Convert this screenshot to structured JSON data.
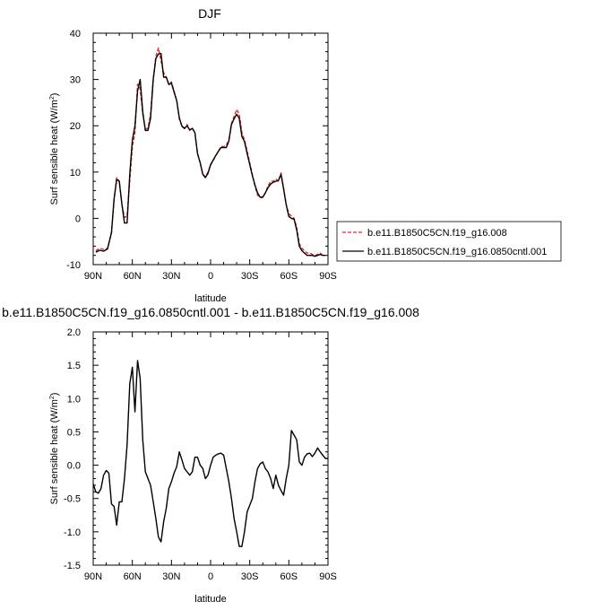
{
  "chart_data": [
    {
      "type": "line",
      "title": "DJF",
      "xlabel": "latitude",
      "ylabel": "Surf sensible heat (W/m",
      "ylabel_sup": "2",
      "ylabel_end": ")",
      "xlim": [
        90,
        -90
      ],
      "ylim": [
        -10,
        40
      ],
      "xticks": [
        90,
        60,
        30,
        0,
        -30,
        -60,
        -90
      ],
      "xtick_labels": [
        "90N",
        "60N",
        "30N",
        "0",
        "30S",
        "60S",
        "90S"
      ],
      "yticks": [
        -10,
        0,
        10,
        20,
        30,
        40
      ],
      "ytick_labels": [
        "-10",
        "0",
        "10",
        "20",
        "30",
        "40"
      ],
      "legend_position": "right",
      "series": [
        {
          "name": "b.e11.B1850C5CN.f19_g16.008",
          "color": "#e8262a",
          "style": "dashed",
          "x": [
            88,
            85,
            82,
            79,
            76,
            74,
            72,
            70,
            68,
            66,
            64,
            62,
            60,
            58,
            56,
            54,
            52,
            50,
            48,
            46,
            44,
            42,
            40,
            38,
            36,
            34,
            32,
            30,
            28,
            26,
            24,
            22,
            20,
            18,
            16,
            14,
            12,
            10,
            8,
            6,
            4,
            2,
            0,
            -2,
            -4,
            -6,
            -8,
            -10,
            -12,
            -14,
            -16,
            -18,
            -20,
            -22,
            -24,
            -26,
            -28,
            -30,
            -32,
            -34,
            -36,
            -38,
            -40,
            -42,
            -44,
            -46,
            -48,
            -50,
            -52,
            -54,
            -56,
            -58,
            -60,
            -62,
            -64,
            -66,
            -68,
            -70,
            -72,
            -74,
            -76,
            -78,
            -80,
            -82,
            -84,
            -86,
            -88
          ],
          "values": [
            -7.0,
            -6.5,
            -6.7,
            -6.5,
            -3.0,
            4.0,
            8.8,
            8.0,
            3.0,
            0.2,
            0.5,
            8.0,
            15.5,
            18.5,
            29.0,
            28.0,
            22.5,
            19.2,
            19.5,
            22.5,
            30.0,
            35.0,
            36.8,
            34.0,
            31.5,
            30.5,
            29.0,
            29.5,
            27.5,
            25.5,
            21.5,
            20.0,
            19.5,
            20.3,
            19.0,
            19.5,
            18.5,
            14.0,
            12.0,
            9.5,
            9.0,
            10.0,
            11.5,
            12.5,
            13.5,
            14.5,
            15.5,
            15.5,
            15.8,
            17.0,
            20.5,
            22.0,
            23.5,
            22.5,
            18.5,
            17.0,
            14.5,
            12.0,
            9.5,
            7.0,
            5.0,
            4.5,
            4.5,
            5.5,
            7.0,
            8.0,
            8.0,
            8.5,
            8.0,
            9.8,
            6.5,
            3.0,
            1.0,
            0.5,
            0.0,
            -2.0,
            -5.5,
            -6.5,
            -7.0,
            -7.5,
            -7.5,
            -7.8,
            -8.0,
            -7.8,
            -7.5,
            -8.0,
            -8.0
          ]
        },
        {
          "name": "b.e11.B1850C5CN.f19_g16.0850cntl.001",
          "color": "#000000",
          "style": "solid",
          "x": [
            88,
            85,
            82,
            79,
            76,
            74,
            72,
            70,
            68,
            66,
            64,
            62,
            60,
            58,
            56,
            54,
            52,
            50,
            48,
            46,
            44,
            42,
            40,
            38,
            36,
            34,
            32,
            30,
            28,
            26,
            24,
            22,
            20,
            18,
            16,
            14,
            12,
            10,
            8,
            6,
            4,
            2,
            0,
            -2,
            -4,
            -6,
            -8,
            -10,
            -12,
            -14,
            -16,
            -18,
            -20,
            -22,
            -24,
            -26,
            -28,
            -30,
            -32,
            -34,
            -36,
            -38,
            -40,
            -42,
            -44,
            -46,
            -48,
            -50,
            -52,
            -54,
            -56,
            -58,
            -60,
            -62,
            -64,
            -66,
            -68,
            -70,
            -72,
            -74,
            -76,
            -78,
            -80,
            -82,
            -84,
            -86,
            -88
          ],
          "values": [
            -7.3,
            -6.9,
            -7.1,
            -6.6,
            -3.1,
            4.2,
            8.4,
            8.0,
            3.1,
            -1.0,
            -1.0,
            9.5,
            16.9,
            20.0,
            27.5,
            30.0,
            23.0,
            19.0,
            19.0,
            21.6,
            30.0,
            34.5,
            35.5,
            35.6,
            30.5,
            30.5,
            28.9,
            29.2,
            27.3,
            25.4,
            21.7,
            19.9,
            19.4,
            20.0,
            19.1,
            19.4,
            18.5,
            14.0,
            12.0,
            9.5,
            8.8,
            9.7,
            11.6,
            12.6,
            13.6,
            14.5,
            15.3,
            15.3,
            15.3,
            16.7,
            20.3,
            21.5,
            22.5,
            21.6,
            17.7,
            16.6,
            14.0,
            11.6,
            9.2,
            7.2,
            5.5,
            4.6,
            4.6,
            5.5,
            6.6,
            7.4,
            7.8,
            8.0,
            8.2,
            9.5,
            6.3,
            2.9,
            0.4,
            0.0,
            -0.2,
            -2.5,
            -6.0,
            -7.0,
            -7.5,
            -8.0,
            -8.0,
            -8.0,
            -8.2,
            -8.0,
            -7.8,
            -8.0,
            -8.0
          ]
        }
      ]
    },
    {
      "type": "line",
      "title": "b.e11.B1850C5CN.f19_g16.0850cntl.001 - b.e11.B1850C5CN.f19_g16.008",
      "xlabel": "latitude",
      "ylabel": "Surf sensible heat (W/m",
      "ylabel_sup": "2",
      "ylabel_end": ")",
      "xlim": [
        90,
        -90
      ],
      "ylim": [
        -1.5,
        2.0
      ],
      "xticks": [
        90,
        60,
        30,
        0,
        -30,
        -60,
        -90
      ],
      "xtick_labels": [
        "90N",
        "60N",
        "30N",
        "0",
        "30S",
        "60S",
        "90S"
      ],
      "yticks": [
        -1.5,
        -1.0,
        -0.5,
        0.0,
        0.5,
        1.0,
        1.5,
        2.0
      ],
      "ytick_labels": [
        "-1.5",
        "-1.0",
        "-0.5",
        "0.0",
        "0.5",
        "1.0",
        "1.5",
        "2.0"
      ],
      "series": [
        {
          "color": "#000000",
          "style": "solid",
          "x": [
            90,
            88,
            86,
            84,
            82,
            80,
            78,
            76,
            74,
            72,
            70,
            68,
            66,
            64,
            62,
            60,
            58,
            56,
            54,
            52,
            50,
            48,
            46,
            44,
            42,
            40,
            38,
            36,
            34,
            32,
            30,
            28,
            26,
            24,
            22,
            20,
            18,
            16,
            14,
            12,
            10,
            8,
            6,
            4,
            2,
            0,
            -2,
            -4,
            -6,
            -8,
            -10,
            -12,
            -14,
            -16,
            -18,
            -20,
            -22,
            -24,
            -26,
            -28,
            -30,
            -32,
            -34,
            -36,
            -38,
            -40,
            -42,
            -44,
            -46,
            -48,
            -50,
            -52,
            -54,
            -56,
            -58,
            -60,
            -62,
            -64,
            -66,
            -68,
            -70,
            -72,
            -74,
            -76,
            -78,
            -80,
            -82,
            -84,
            -86,
            -88,
            -90
          ],
          "values": [
            -0.28,
            -0.4,
            -0.42,
            -0.35,
            -0.15,
            -0.08,
            -0.12,
            -0.58,
            -0.62,
            -0.9,
            -0.55,
            -0.55,
            -0.2,
            0.3,
            1.22,
            1.47,
            0.8,
            1.57,
            1.3,
            0.38,
            -0.1,
            -0.2,
            -0.3,
            -0.55,
            -0.8,
            -1.08,
            -1.15,
            -0.85,
            -0.65,
            -0.35,
            -0.25,
            -0.12,
            -0.02,
            0.2,
            0.08,
            -0.05,
            -0.1,
            -0.15,
            -0.1,
            0.12,
            0.12,
            0.0,
            -0.05,
            -0.2,
            -0.15,
            0.0,
            0.12,
            0.15,
            0.17,
            0.18,
            0.15,
            -0.05,
            -0.25,
            -0.5,
            -0.8,
            -1.0,
            -1.22,
            -1.22,
            -1.0,
            -0.7,
            -0.6,
            -0.5,
            -0.25,
            -0.05,
            0.02,
            0.05,
            -0.05,
            -0.1,
            -0.2,
            -0.35,
            -0.15,
            -0.3,
            -0.38,
            -0.45,
            -0.2,
            0.0,
            0.52,
            0.45,
            0.38,
            0.05,
            0.0,
            0.12,
            0.17,
            0.18,
            0.13,
            0.18,
            0.26,
            0.2,
            0.15,
            0.1,
            0.1
          ]
        }
      ]
    }
  ]
}
